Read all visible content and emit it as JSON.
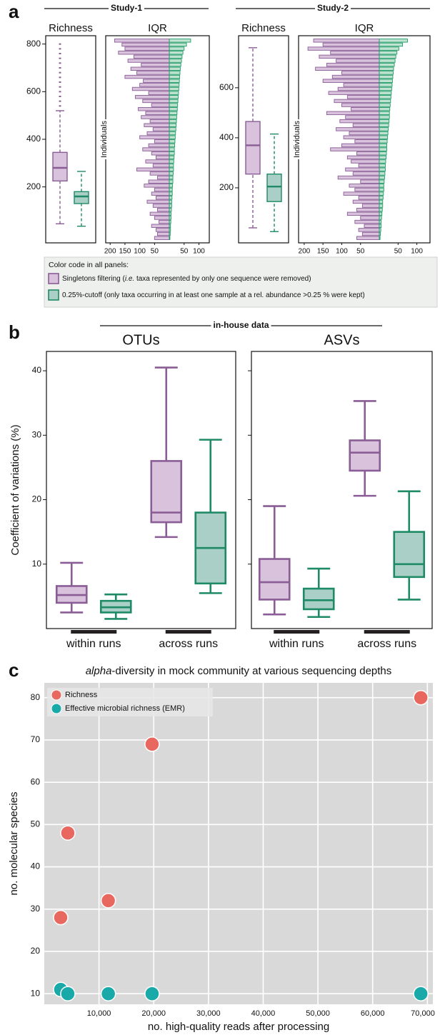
{
  "figure": {
    "panel_labels": [
      "a",
      "b",
      "c"
    ],
    "headers": [
      "Study-1",
      "Study-2",
      "in-house data"
    ],
    "legend": {
      "title": "Color code in all panels:",
      "items": [
        {
          "color": "#8a5d96",
          "fill": "#d8c2dc",
          "parts": [
            {
              "text": "Singletons filtering ("
            },
            {
              "text": "i.e.",
              "italic": true
            },
            {
              "text": " taxa represented by only one sequence were removed)"
            }
          ]
        },
        {
          "color": "#1e8a66",
          "fill": "#a9cfc6",
          "parts": [
            {
              "text": "0.25%-cutoff (only taxa occurring in at least one sample at a rel. abundance >0.25 % were kept)"
            }
          ]
        }
      ]
    }
  },
  "chart_data": [
    {
      "type": "box",
      "title": "Richness",
      "ylim": [
        -35,
        835
      ],
      "yticks": [
        200,
        400,
        600,
        800
      ],
      "whisker_style": "dashed",
      "series": [
        {
          "color": "#8a5d96",
          "fill": "#d8c2dc",
          "whislo": 45,
          "q1": 225,
          "med": 280,
          "q3": 345,
          "whishi": 520,
          "fliers": [
            540,
            560,
            580,
            600,
            620,
            640,
            660,
            680,
            700,
            720,
            740,
            760,
            780,
            800
          ]
        },
        {
          "color": "#1e8a66",
          "fill": "#a9cfc6",
          "whislo": 35,
          "q1": 130,
          "med": 160,
          "q3": 180,
          "whishi": 265,
          "fliers": []
        }
      ]
    },
    {
      "type": "diverging_bar",
      "title": "IQR",
      "ylabel": "Individuals",
      "xlim": [
        -215,
        135
      ],
      "xticks": [
        {
          "value": -200,
          "label": "200"
        },
        {
          "value": -150,
          "label": "150"
        },
        {
          "value": -100,
          "label": "100"
        },
        {
          "value": -50,
          "label": "50"
        },
        50,
        100
      ],
      "series": [
        {
          "color": "#8a5d96",
          "fill": "#d8c2dc",
          "values": [
            -185,
            -160,
            -150,
            -172,
            -120,
            -140,
            -95,
            -130,
            -110,
            -150,
            -88,
            -100,
            -125,
            -70,
            -115,
            -90,
            -60,
            -105,
            -80,
            -95,
            -65,
            -85,
            -55,
            -75,
            -100,
            -50,
            -70,
            -90,
            -60,
            -45,
            -80,
            -55,
            -110,
            -65,
            -40,
            -70,
            -85,
            -50,
            -60,
            -45,
            -75,
            -55,
            -40,
            -65,
            -50,
            -35,
            -60,
            -45,
            -40,
            -50
          ]
        },
        {
          "color": "#1e9a66",
          "fill": "#bfe3d0",
          "values": [
            72,
            58,
            50,
            46,
            43,
            41,
            39,
            37,
            36,
            35,
            34,
            33,
            32,
            31,
            30,
            29,
            28,
            27,
            26,
            25,
            24,
            23,
            22,
            21,
            20,
            19,
            18,
            17,
            17,
            16,
            15,
            14,
            14,
            13,
            12,
            12,
            11,
            10,
            10,
            9,
            8,
            8,
            7,
            6,
            6,
            5,
            4,
            4,
            3,
            2
          ]
        }
      ]
    },
    {
      "type": "box",
      "title": "Richness",
      "ylim": [
        -20,
        808
      ],
      "yticks": [
        200,
        400,
        600
      ],
      "whisker_style": "dashed",
      "series": [
        {
          "color": "#8a5d96",
          "fill": "#d8c2dc",
          "whislo": 40,
          "q1": 255,
          "med": 370,
          "q3": 465,
          "whishi": 760,
          "fliers": []
        },
        {
          "color": "#1e8a66",
          "fill": "#a9cfc6",
          "whislo": 25,
          "q1": 145,
          "med": 205,
          "q3": 255,
          "whishi": 415,
          "fliers": []
        }
      ]
    },
    {
      "type": "diverging_bar",
      "title": "IQR",
      "ylabel": "Individuals",
      "xlim": [
        -215,
        135
      ],
      "xticks": [
        {
          "value": -200,
          "label": "200"
        },
        {
          "value": -150,
          "label": "150"
        },
        {
          "value": -100,
          "label": "100"
        },
        {
          "value": -50,
          "label": "50"
        },
        50,
        100
      ],
      "series": [
        {
          "color": "#8a5d96",
          "fill": "#d8c2dc",
          "values": [
            -175,
            -150,
            -190,
            -130,
            -160,
            -115,
            -140,
            -170,
            -100,
            -125,
            -150,
            -95,
            -110,
            -135,
            -85,
            -120,
            -100,
            -75,
            -140,
            -90,
            -105,
            -70,
            -115,
            -80,
            -95,
            -65,
            -100,
            -130,
            -60,
            -85,
            -75,
            -55,
            -90,
            -70,
            -110,
            -50,
            -80,
            -65,
            -95,
            -55,
            -70,
            -45,
            -60,
            -85,
            -50,
            -65,
            -40,
            -55,
            -45,
            -60
          ]
        },
        {
          "color": "#1e9a66",
          "fill": "#bfe3d0",
          "values": [
            75,
            62,
            52,
            47,
            44,
            42,
            40,
            38,
            37,
            36,
            35,
            34,
            33,
            32,
            31,
            30,
            29,
            28,
            27,
            27,
            26,
            25,
            24,
            23,
            22,
            21,
            20,
            20,
            19,
            18,
            17,
            16,
            16,
            15,
            14,
            13,
            12,
            12,
            11,
            10,
            9,
            9,
            8,
            7,
            6,
            5,
            5,
            4,
            3,
            2
          ]
        }
      ]
    },
    {
      "type": "box",
      "title": "OTUs",
      "ylabel": "Coefficient of variations (%)",
      "categories": [
        "within runs",
        "across runs"
      ],
      "ylim": [
        0,
        43
      ],
      "yticks": [
        10,
        20,
        30,
        40
      ],
      "whisker_style": "solid",
      "series": [
        {
          "color": "#8a5d96",
          "fill": "#d8c2dc",
          "whislo": [
            2.5,
            14.2
          ],
          "q1": [
            4,
            16.5
          ],
          "med": [
            5.2,
            18
          ],
          "q3": [
            6.6,
            26
          ],
          "whishi": [
            10.2,
            40.5
          ]
        },
        {
          "color": "#1e8a66",
          "fill": "#a9cfc6",
          "whislo": [
            1.5,
            5.5
          ],
          "q1": [
            2.5,
            7
          ],
          "med": [
            3.3,
            12.5
          ],
          "q3": [
            4.3,
            18
          ],
          "whishi": [
            5.3,
            29.3
          ]
        }
      ]
    },
    {
      "type": "box",
      "title": "ASVs",
      "categories": [
        "within runs",
        "across runs"
      ],
      "ylim": [
        0,
        43
      ],
      "ytick_marks": [
        10,
        20,
        30,
        40
      ],
      "whisker_style": "solid",
      "series": [
        {
          "color": "#8a5d96",
          "fill": "#d8c2dc",
          "whislo": [
            2.2,
            20.6
          ],
          "q1": [
            4.5,
            24.5
          ],
          "med": [
            7.2,
            27.3
          ],
          "q3": [
            10.8,
            29.2
          ],
          "whishi": [
            19,
            35.3
          ]
        },
        {
          "color": "#1e8a66",
          "fill": "#a9cfc6",
          "whislo": [
            1.8,
            4.5
          ],
          "q1": [
            3,
            8
          ],
          "med": [
            4.4,
            10
          ],
          "q3": [
            6.2,
            15
          ],
          "whishi": [
            9.3,
            21.3
          ]
        }
      ]
    },
    {
      "type": "scatter",
      "title_parts": [
        {
          "text": "alpha",
          "italic": true
        },
        {
          "text": "-diversity in mock community at various sequencing depths"
        }
      ],
      "xlabel": "no. high-quality reads after processing",
      "ylabel": "no. molecular species",
      "xlim": [
        0,
        71000
      ],
      "ylim": [
        7.5,
        83.5
      ],
      "xticks": [
        {
          "value": 10000,
          "label": "10,000"
        },
        {
          "value": 20000,
          "label": "20,000"
        },
        {
          "value": 30000,
          "label": "30,000"
        },
        {
          "value": 40000,
          "label": "40,000"
        },
        {
          "value": 50000,
          "label": "50,000"
        },
        {
          "value": 60000,
          "label": "60,000"
        },
        {
          "value": 70000,
          "label": "70,000"
        }
      ],
      "yticks": [
        10,
        20,
        30,
        40,
        50,
        60,
        70,
        80
      ],
      "grid": true,
      "series": [
        {
          "name": "Richness",
          "color": "#e8685f",
          "x": [
            3000,
            4300,
            11700,
            19700,
            68800
          ],
          "values": [
            28,
            48,
            32,
            69,
            80
          ]
        },
        {
          "name": "Effective microbial richness (EMR)",
          "color": "#18a9a8",
          "x": [
            3000,
            4300,
            11700,
            19700,
            68800
          ],
          "values": [
            11,
            10,
            10,
            10,
            10
          ]
        }
      ]
    }
  ]
}
